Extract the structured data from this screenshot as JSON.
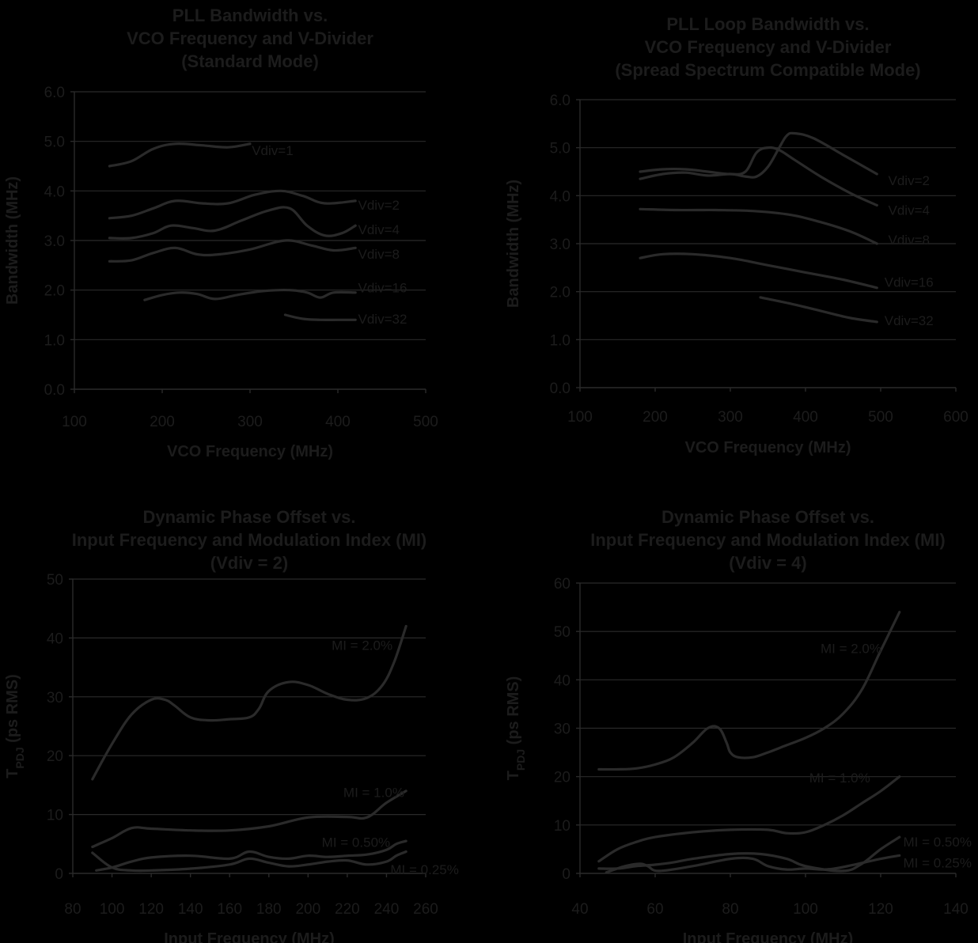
{
  "chart_data": [
    {
      "type": "line",
      "title": [
        "PLL Bandwidth vs.",
        "VCO Frequency and V-Divider",
        "(Standard Mode)"
      ],
      "xlabel": "VCO Frequency (MHz)",
      "ylabel": "Bandwidth (MHz)",
      "xlim": [
        100,
        500
      ],
      "ylim": [
        0,
        6
      ],
      "xticks": [
        100,
        200,
        300,
        400,
        500
      ],
      "yticks": [
        0,
        1,
        2,
        3,
        4,
        5,
        6
      ],
      "ytick_labels": [
        "0.0",
        "1.0",
        "2.0",
        "3.0",
        "4.0",
        "5.0",
        "6.0"
      ],
      "grid": true,
      "series": [
        {
          "name": "Vdiv=1",
          "x": [
            140,
            165,
            190,
            215,
            245,
            275,
            300
          ],
          "y": [
            4.5,
            4.6,
            4.85,
            4.95,
            4.92,
            4.88,
            4.95
          ]
        },
        {
          "name": "Vdiv=2",
          "x": [
            140,
            165,
            190,
            215,
            245,
            275,
            305,
            335,
            360,
            385,
            420
          ],
          "y": [
            3.45,
            3.5,
            3.65,
            3.8,
            3.75,
            3.75,
            3.92,
            4.0,
            3.9,
            3.75,
            3.8
          ]
        },
        {
          "name": "Vdiv=4",
          "x": [
            140,
            165,
            190,
            210,
            235,
            260,
            290,
            320,
            345,
            365,
            385,
            405,
            420
          ],
          "y": [
            3.05,
            3.05,
            3.15,
            3.3,
            3.25,
            3.2,
            3.4,
            3.6,
            3.65,
            3.3,
            3.1,
            3.15,
            3.3
          ]
        },
        {
          "name": "Vdiv=8",
          "x": [
            140,
            165,
            190,
            215,
            240,
            265,
            300,
            340,
            370,
            395,
            420
          ],
          "y": [
            2.58,
            2.6,
            2.75,
            2.85,
            2.72,
            2.72,
            2.82,
            3.0,
            2.9,
            2.8,
            2.85
          ]
        },
        {
          "name": "Vdiv=16",
          "x": [
            180,
            200,
            220,
            240,
            260,
            285,
            315,
            345,
            365,
            380,
            395,
            420
          ],
          "y": [
            1.8,
            1.9,
            1.95,
            1.92,
            1.82,
            1.9,
            1.98,
            2.0,
            1.95,
            1.85,
            1.95,
            1.95
          ]
        },
        {
          "name": "Vdiv=32",
          "x": [
            340,
            360,
            380,
            400,
            420
          ],
          "y": [
            1.5,
            1.42,
            1.4,
            1.4,
            1.4
          ]
        }
      ]
    },
    {
      "type": "line",
      "title": [
        "PLL Loop Bandwidth vs.",
        "VCO Frequency and V-Divider",
        "(Spread Spectrum Compatible Mode)"
      ],
      "xlabel": "VCO Frequency (MHz)",
      "ylabel": "Bandwidth (MHz)",
      "xlim": [
        100,
        600
      ],
      "ylim": [
        0,
        6
      ],
      "xticks": [
        100,
        200,
        300,
        400,
        500,
        600
      ],
      "yticks": [
        0,
        1,
        2,
        3,
        4,
        5,
        6
      ],
      "ytick_labels": [
        "0.0",
        "1.0",
        "2.0",
        "3.0",
        "4.0",
        "5.0",
        "6.0"
      ],
      "grid": true,
      "series": [
        {
          "name": "Vdiv=2",
          "x": [
            180,
            210,
            240,
            270,
            300,
            320,
            335,
            350,
            365,
            375,
            385,
            410,
            450,
            495
          ],
          "y": [
            4.35,
            4.45,
            4.48,
            4.42,
            4.45,
            4.4,
            4.4,
            4.6,
            5.0,
            5.25,
            5.3,
            5.2,
            4.85,
            4.45
          ]
        },
        {
          "name": "Vdiv=4",
          "x": [
            180,
            210,
            240,
            270,
            300,
            320,
            335,
            350,
            365,
            385,
            420,
            460,
            495
          ],
          "y": [
            4.5,
            4.55,
            4.55,
            4.5,
            4.45,
            4.5,
            4.9,
            5.0,
            4.95,
            4.75,
            4.4,
            4.05,
            3.8
          ]
        },
        {
          "name": "Vdiv=8",
          "x": [
            180,
            230,
            280,
            330,
            380,
            420,
            460,
            495
          ],
          "y": [
            3.72,
            3.7,
            3.7,
            3.68,
            3.6,
            3.45,
            3.25,
            3.0
          ]
        },
        {
          "name": "Vdiv=16",
          "x": [
            180,
            210,
            250,
            300,
            350,
            400,
            450,
            495
          ],
          "y": [
            2.7,
            2.78,
            2.78,
            2.7,
            2.55,
            2.4,
            2.25,
            2.08
          ]
        },
        {
          "name": "Vdiv=32",
          "x": [
            340,
            380,
            420,
            460,
            495
          ],
          "y": [
            1.88,
            1.75,
            1.6,
            1.45,
            1.37
          ]
        }
      ]
    },
    {
      "type": "line",
      "title": [
        "Dynamic Phase Offset vs.",
        "Input Frequency and Modulation Index (MI)",
        "(Vdiv = 2)"
      ],
      "xlabel": "Input Frequency (MHz)",
      "ylabel": "TPDJ (ps RMS)",
      "xlim": [
        80,
        260
      ],
      "ylim": [
        0,
        50
      ],
      "xticks": [
        80,
        100,
        120,
        140,
        160,
        180,
        200,
        220,
        240,
        260
      ],
      "yticks": [
        0,
        10,
        20,
        30,
        40,
        50
      ],
      "grid": true,
      "series": [
        {
          "name": "MI = 2.0%",
          "x": [
            90,
            100,
            110,
            120,
            127,
            132,
            140,
            150,
            160,
            170,
            175,
            180,
            190,
            200,
            210,
            220,
            230,
            238,
            244,
            250
          ],
          "y": [
            16,
            22,
            27,
            29.5,
            29.5,
            28.5,
            26.5,
            26,
            26.2,
            26.5,
            28,
            31,
            32.5,
            32,
            30.5,
            29.5,
            29.8,
            32,
            36,
            42
          ]
        },
        {
          "name": "MI = 1.0%",
          "x": [
            90,
            100,
            110,
            120,
            140,
            160,
            180,
            200,
            220,
            230,
            240,
            250
          ],
          "y": [
            4.5,
            6,
            7.7,
            7.6,
            7.3,
            7.3,
            8,
            9.5,
            9.6,
            9.5,
            12,
            14
          ]
        },
        {
          "name": "MI = 0.50%",
          "x": [
            90,
            100,
            110,
            120,
            140,
            160,
            170,
            180,
            190,
            200,
            210,
            220,
            230,
            240,
            245,
            250
          ],
          "y": [
            3.5,
            1,
            0.5,
            0.5,
            0.8,
            1.5,
            2.5,
            1.8,
            1.2,
            1.5,
            2,
            2.2,
            1.5,
            2,
            3,
            3.7
          ]
        },
        {
          "name": "MI = 0.25%",
          "x": [
            92,
            100,
            110,
            120,
            140,
            160,
            170,
            180,
            190,
            200,
            210,
            220,
            230,
            240,
            245,
            250
          ],
          "y": [
            0.5,
            1,
            2,
            2.7,
            3,
            2.5,
            3.7,
            2.8,
            2.5,
            3,
            2.8,
            3,
            3.2,
            4,
            5,
            5.5
          ]
        }
      ]
    },
    {
      "type": "line",
      "title": [
        "Dynamic Phase Offset vs.",
        "Input Frequency and Modulation Index (MI)",
        "(Vdiv = 4)"
      ],
      "xlabel": "Input Frequency (MHz)",
      "ylabel": "TPDJ (ps RMS)",
      "xlim": [
        40,
        140
      ],
      "ylim": [
        0,
        60
      ],
      "xticks": [
        40,
        60,
        80,
        100,
        120,
        140
      ],
      "yticks": [
        0,
        10,
        20,
        30,
        40,
        50,
        60
      ],
      "grid": true,
      "series": [
        {
          "name": "MI = 2.0%",
          "x": [
            45,
            50,
            55,
            60,
            65,
            70,
            74,
            77,
            79,
            80,
            82,
            86,
            90,
            95,
            100,
            105,
            110,
            115,
            120,
            125
          ],
          "y": [
            21.5,
            21.5,
            21.7,
            22.5,
            24,
            27,
            30,
            30,
            27,
            25,
            24,
            24,
            25,
            26.5,
            28,
            30,
            33,
            38,
            46,
            54
          ]
        },
        {
          "name": "MI = 1.0%",
          "x": [
            45,
            50,
            55,
            60,
            70,
            80,
            90,
            95,
            100,
            105,
            110,
            115,
            120,
            125
          ],
          "y": [
            2.5,
            5,
            6.5,
            7.5,
            8.5,
            9,
            9,
            8.3,
            8.5,
            10,
            12,
            14.5,
            17,
            20
          ]
        },
        {
          "name": "MI = 0.50%",
          "x": [
            45,
            50,
            55,
            60,
            65,
            70,
            80,
            88,
            95,
            100,
            110,
            115,
            120,
            125
          ],
          "y": [
            1,
            1,
            1.5,
            1.8,
            2.3,
            3,
            4,
            4,
            3,
            1.5,
            0.5,
            2,
            5,
            7.5
          ]
        },
        {
          "name": "MI = 0.25%",
          "x": [
            47,
            52,
            56,
            58,
            61,
            70,
            80,
            86,
            90,
            95,
            100,
            105,
            110,
            120,
            125
          ],
          "y": [
            0.2,
            1.5,
            2,
            1.5,
            0.5,
            1.5,
            3,
            3,
            1.5,
            0.8,
            1,
            0.8,
            1.3,
            3,
            3.7
          ]
        }
      ]
    }
  ],
  "labels": [
    {
      "series": [
        {
          "text": "Vdiv=1",
          "x": 302,
          "y": 4.82
        },
        {
          "text": "Vdiv=2",
          "x": 423,
          "y": 3.72
        },
        {
          "text": "Vdiv=4",
          "x": 423,
          "y": 3.22
        },
        {
          "text": "Vdiv=8",
          "x": 423,
          "y": 2.73
        },
        {
          "text": "Vdiv=16",
          "x": 423,
          "y": 2.05
        },
        {
          "text": "Vdiv=32",
          "x": 423,
          "y": 1.42
        }
      ]
    },
    {
      "series": [
        {
          "text": "Vdiv=2",
          "x": 510,
          "y": 4.32
        },
        {
          "text": "Vdiv=4",
          "x": 510,
          "y": 3.7
        },
        {
          "text": "Vdiv=8",
          "x": 510,
          "y": 3.08
        },
        {
          "text": "Vdiv=16",
          "x": 505,
          "y": 2.2
        },
        {
          "text": "Vdiv=32",
          "x": 505,
          "y": 1.4
        }
      ]
    },
    {
      "series": [
        {
          "text": "MI = 2.0%",
          "x": 212,
          "y": 38.8
        },
        {
          "text": "MI = 1.0%",
          "x": 218,
          "y": 13.8
        },
        {
          "text": "MI = 0.50%",
          "x": 207,
          "y": 5.3
        },
        {
          "text": "MI = 0.25%",
          "x": 242,
          "y": 0.7
        }
      ]
    },
    {
      "series": [
        {
          "text": "MI = 2.0%",
          "x": 104,
          "y": 46.5
        },
        {
          "text": "MI = 1.0%",
          "x": 101,
          "y": 19.8
        },
        {
          "text": "MI = 0.50%",
          "x": 126,
          "y": 6.5
        },
        {
          "text": "MI = 0.25%",
          "x": 126,
          "y": 2.2
        }
      ]
    }
  ],
  "colors": {
    "background": "#000000",
    "ink": "#1c1c1c",
    "line": "#2a2a2a"
  }
}
